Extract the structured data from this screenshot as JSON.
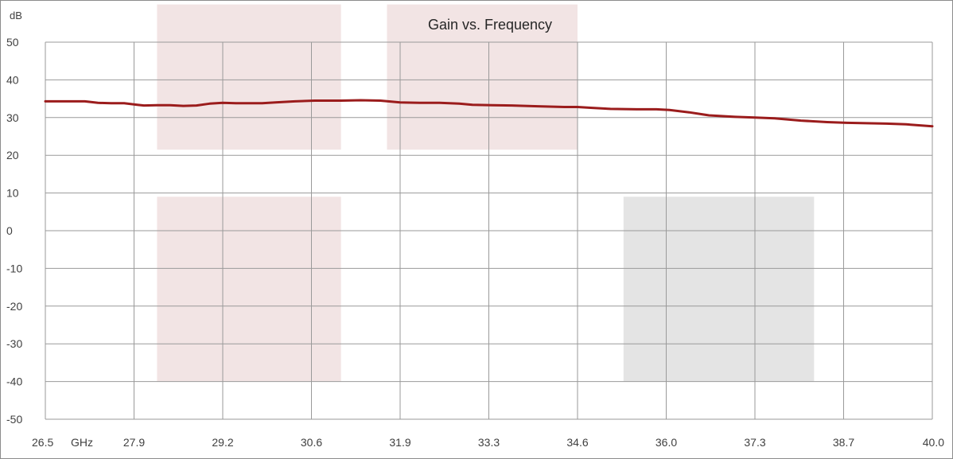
{
  "chart_data": {
    "type": "line",
    "title": "Gain vs. Frequency",
    "ylabel": "dB",
    "x_unit": "GHz",
    "ylim": [
      -50,
      50
    ],
    "xlim": [
      26.5,
      40.0
    ],
    "grid": true,
    "y_ticks": [
      "50",
      "40",
      "30",
      "20",
      "10",
      "0",
      "-10",
      "-20",
      "-30",
      "-40",
      "-50"
    ],
    "x_ticks": [
      "26.5",
      "27.9",
      "29.2",
      "30.6",
      "31.9",
      "33.3",
      "34.6",
      "36.0",
      "37.3",
      "38.7",
      "40.0"
    ],
    "line_color": "#9b1c1c",
    "shaded_regions": [
      {
        "x": [
          28.2,
          31.0
        ],
        "y": [
          21.5,
          60
        ],
        "color": "#f2e4e4"
      },
      {
        "x": [
          31.7,
          34.6
        ],
        "y": [
          21.5,
          60
        ],
        "color": "#f2e4e4"
      },
      {
        "x": [
          28.2,
          31.0
        ],
        "y": [
          -40,
          9
        ],
        "color": "#f2e4e4"
      },
      {
        "x": [
          35.3,
          38.2
        ],
        "y": [
          -40,
          9
        ],
        "color": "#e4e4e4"
      }
    ],
    "series": [
      {
        "x": [
          26.5,
          26.8,
          27.1,
          27.3,
          27.5,
          27.7,
          27.9,
          28.0,
          28.2,
          28.4,
          28.6,
          28.8,
          29.0,
          29.2,
          29.4,
          29.6,
          29.8,
          30.0,
          30.3,
          30.6,
          31.0,
          31.3,
          31.6,
          31.9,
          32.2,
          32.5,
          32.8,
          33.0,
          33.3,
          33.6,
          34.0,
          34.4,
          34.6,
          34.8,
          35.1,
          35.5,
          35.8,
          36.0,
          36.3,
          36.6,
          37.0,
          37.3,
          37.6,
          38.0,
          38.4,
          38.7,
          39.0,
          39.3,
          39.6,
          40.0
        ],
        "y": [
          34.3,
          34.3,
          34.3,
          33.9,
          33.8,
          33.8,
          33.4,
          33.2,
          33.3,
          33.3,
          33.1,
          33.2,
          33.7,
          33.9,
          33.8,
          33.8,
          33.8,
          34.0,
          34.3,
          34.5,
          34.5,
          34.6,
          34.5,
          34.0,
          33.9,
          33.9,
          33.7,
          33.4,
          33.3,
          33.2,
          33.0,
          32.8,
          32.8,
          32.6,
          32.3,
          32.2,
          32.2,
          32.0,
          31.4,
          30.6,
          30.2,
          30.0,
          29.8,
          29.2,
          28.8,
          28.6,
          28.5,
          28.4,
          28.2,
          27.7
        ]
      }
    ]
  }
}
